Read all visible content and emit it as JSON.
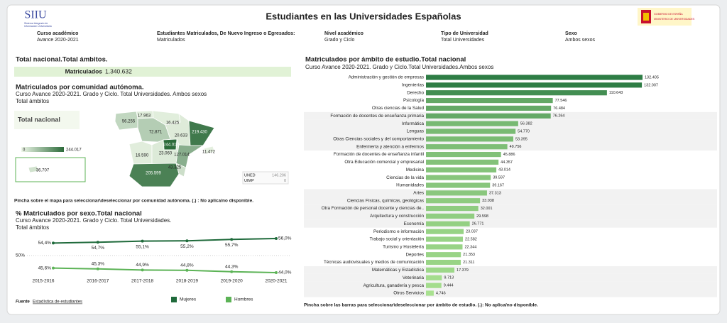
{
  "header": {
    "title": "Estudiantes en las Universidades Españolas",
    "logo": "SIIU",
    "logo_lines": [
      "Sistema Integrado de",
      "Información Universitaria"
    ],
    "ministry_lines": [
      "GOBIERNO DE ESPAÑA",
      "MINISTERIO DE UNIVERSIDADES"
    ]
  },
  "filters": [
    {
      "label": "Curso académico",
      "value": "Avance 2020-2021"
    },
    {
      "label": "Estudiantes Matriculados, De Nuevo Ingreso o Egresados:",
      "value": "Matriculados"
    },
    {
      "label": "Nivel académico",
      "value": "Grado y Ciclo"
    },
    {
      "label": "Tipo de Universidad",
      "value": "Total Universidades"
    },
    {
      "label": "Sexo",
      "value": "Ambos sexos"
    }
  ],
  "total": {
    "title": "Total nacional.Total ámbitos.",
    "label": "Matriculados",
    "value": "1.340.632"
  },
  "map": {
    "title": "Matriculados por comunidad autónoma.",
    "subtitle": "Curso Avance 2020-2021. Grado y Ciclo. Total Universidades. Ambos sexos",
    "scope": "Total ámbitos",
    "selection": "Total nacional",
    "values": [
      17963,
      56255,
      16425,
      72871,
      20633,
      219430,
      244017,
      16590,
      23060,
      127014,
      11472,
      205599,
      43325,
      36707
    ],
    "value_labels": [
      "17.963",
      "56.255",
      "16.425",
      "72.871",
      "20.633",
      "219.430",
      "244.017",
      "16.590",
      "23.060",
      "127.014",
      "11.472",
      "205.599",
      "43.325",
      "36.707"
    ],
    "scale": [
      0,
      {
        "value": 244017,
        "label": "244.017"
      }
    ],
    "color_scale": [
      "#eef7e8",
      "#2c6b3a"
    ],
    "others": [
      {
        "name": "UNED",
        "value": 146206,
        "label": "146.206"
      },
      {
        "name": "UIMP",
        "value": 0,
        "label": "0"
      }
    ],
    "note": "Pincha sobre el mapa para seleccionar\\deseleccionar por comunidad autónoma. (.) : No aplica/no disponible."
  },
  "chart_data": [
    {
      "type": "bar",
      "orientation": "horizontal",
      "title": "Matriculados por ámbito de estudio.Total nacional",
      "subtitle": "Curso Avance 2020-2021. Grado y Ciclo.Total Universidades.Ambos sexos",
      "categories": [
        "Administración y gestión de empresas",
        "Ingenierías",
        "Derecho",
        "Psicología",
        "Otras ciencias de la Salud",
        "Formación de docentes de enseñanza primaria",
        "Informática",
        "Lenguas",
        "Otras Ciencias sociales y del comportamiento",
        "Enfermería y atención a enfermos",
        "Formación de docentes de enseñanza infantil",
        "Otra Educación comercial y empresarial",
        "Medicina",
        "Ciencias de la vida",
        "Humanidades",
        "Artes",
        "Ciencias Físicas, químicas, geológicas",
        "Otra Formación de personal docente y ciencias de..",
        "Arquitectura y construcción",
        "Economía",
        "Periodismo e información",
        "Trabajo social y orientación",
        "Turismo y Hostelería",
        "Deportes",
        "Técnicas audiovisuales y medios de comunicación",
        "Matemáticas y Estadística",
        "Veterinaria",
        "Agricultura, ganadería y pesca",
        "Otros Servicios"
      ],
      "values": [
        132405,
        132007,
        110643,
        77546,
        76484,
        76264,
        56382,
        54770,
        53395,
        49756,
        45886,
        44357,
        43014,
        39597,
        39167,
        37313,
        33038,
        32001,
        29598,
        26771,
        23037,
        22582,
        22344,
        21353,
        21311,
        17379,
        9713,
        9444,
        4746
      ],
      "value_labels": [
        "132.405",
        "132.007",
        "110.643",
        "77.546",
        "76.484",
        "76.264",
        "56.382",
        "54.770",
        "53.395",
        "49.756",
        "45.886",
        "44.357",
        "43.014",
        "39.597",
        "39.167",
        "37.313",
        "33.038",
        "32.001",
        "29.598",
        "26.771",
        "23.037",
        "22.582",
        "22.344",
        "21.353",
        "21.311",
        "17.379",
        "9.713",
        "9.444",
        "4.746"
      ],
      "color_scale": [
        "#a9e190",
        "#2e7d45"
      ],
      "note": "Pincha sobre las barras para seleccionar\\deseleccionar por ámbito de estudio. (.): No aplica/no disponible."
    },
    {
      "type": "line",
      "title": "% Matriculados por sexo.Total nacional",
      "subtitle": "Curso Avance 2020-2021. Grado y Ciclo. Total Universidades.",
      "scope": "Total ámbitos",
      "categories": [
        "2015-2016",
        "2016-2017",
        "2017-2018",
        "2018-2019",
        "2019-2020",
        "2020-2021"
      ],
      "series": [
        {
          "name": "Mujeres",
          "color": "#1f6a3b",
          "values": [
            54.4,
            54.7,
            55.1,
            55.2,
            55.7,
            56.0
          ],
          "value_labels": [
            "54,4%",
            "54,7%",
            "55,1%",
            "55,2%",
            "55,7%",
            "56,0%"
          ]
        },
        {
          "name": "Hombres",
          "color": "#5cb356",
          "values": [
            45.6,
            45.3,
            44.9,
            44.8,
            44.3,
            44.0
          ],
          "value_labels": [
            "45,6%",
            "45,3%",
            "44,9%",
            "44,8%",
            "44,3%",
            "44,0%"
          ]
        }
      ],
      "ylim": [
        42,
        58
      ],
      "yticks": [
        {
          "value": 50,
          "label": "50%"
        }
      ],
      "grid": true
    }
  ],
  "source": {
    "label": "Fuente",
    "link": "Estadística de estudiantes"
  }
}
